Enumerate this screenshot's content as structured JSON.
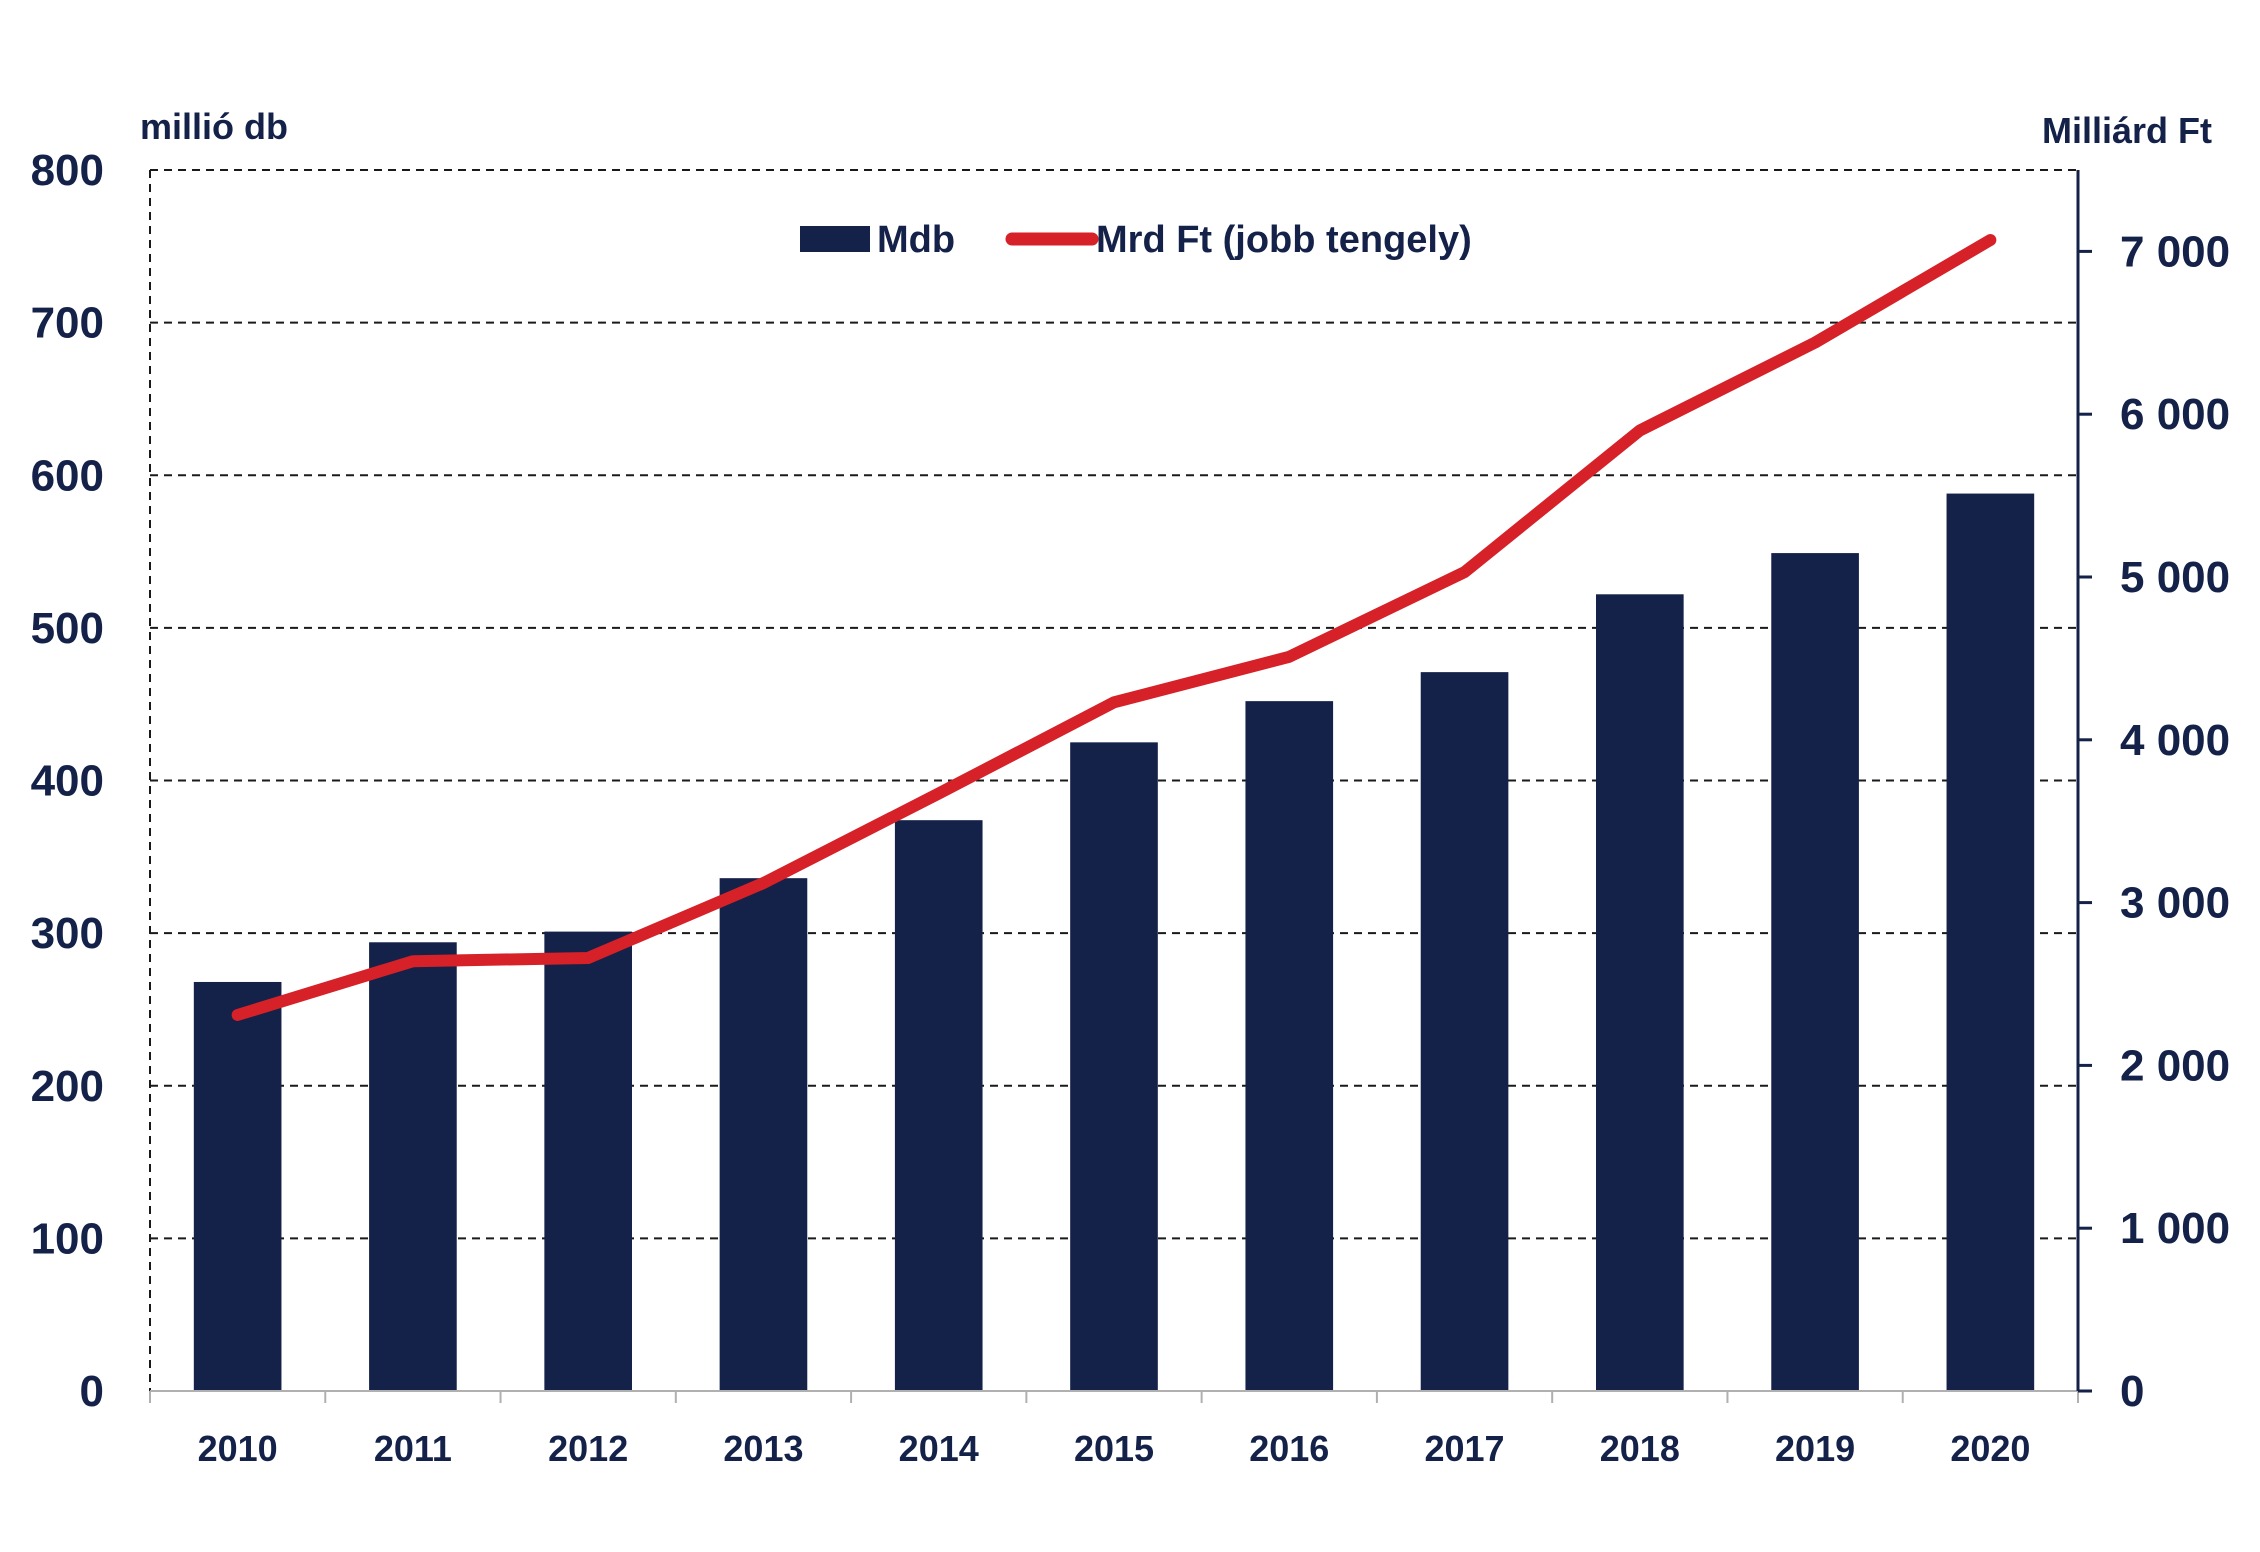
{
  "colors": {
    "bar": "#142148",
    "line": "#d62128",
    "text": "#142148",
    "grid": "#1a1a1a",
    "axis": "#142148",
    "background": "#ffffff"
  },
  "chart_data": {
    "type": "bar",
    "title": "",
    "left_axis_unit": "millió db",
    "right_axis_unit": "Milliárd Ft",
    "categories": [
      "2010",
      "2011",
      "2012",
      "2013",
      "2014",
      "2015",
      "2016",
      "2017",
      "2018",
      "2019",
      "2020"
    ],
    "series": [
      {
        "name": "Mdb",
        "type": "bar",
        "axis": "left",
        "values": [
          268,
          294,
          301,
          336,
          374,
          425,
          452,
          471,
          522,
          549,
          588
        ]
      },
      {
        "name": "Mrd Ft (jobb tengely)",
        "type": "line",
        "axis": "right",
        "values": [
          2310,
          2640,
          2660,
          3120,
          3670,
          4230,
          4510,
          5030,
          5900,
          6440,
          7070
        ]
      }
    ],
    "ylim_left": [
      0,
      800
    ],
    "yticks_left": [
      0,
      100,
      200,
      300,
      400,
      500,
      600,
      700,
      800
    ],
    "yticks_left_labels": [
      "0",
      "100",
      "200",
      "300",
      "400",
      "500",
      "600",
      "700",
      "800"
    ],
    "ylim_right": [
      0,
      7500
    ],
    "yticks_right": [
      0,
      1000,
      2000,
      3000,
      4000,
      5000,
      6000,
      7000
    ],
    "yticks_right_labels": [
      "0",
      "1 000",
      "2 000",
      "3 000",
      "4 000",
      "5 000",
      "6 000",
      "7 000"
    ],
    "grid": true,
    "legend_position": "top-center"
  }
}
